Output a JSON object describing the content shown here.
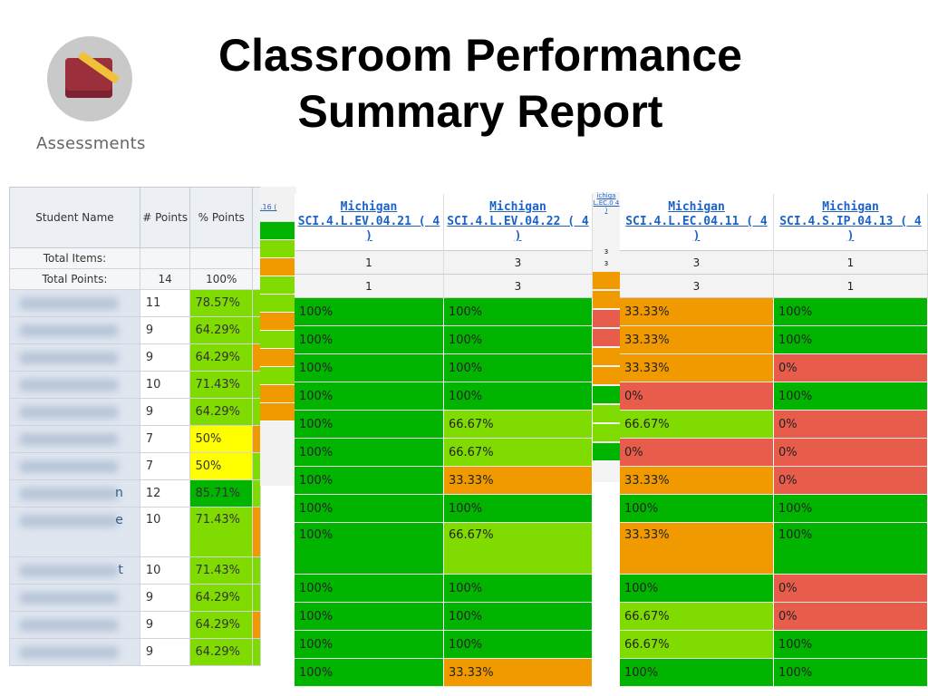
{
  "title": {
    "line1": "Classroom Performance",
    "line2": "Summary Report"
  },
  "app_icon": {
    "label": "Assessments",
    "icon": "assessment-book-pencil-icon"
  },
  "left_table": {
    "headers": {
      "name": "Student Name",
      "points": "# Points",
      "percent": "% Points"
    },
    "total_items_label": "Total Items:",
    "total_points_label": "Total Points:",
    "total_points_value": "14",
    "total_points_percent": "100%",
    "rows": [
      {
        "tail": "",
        "points": "11",
        "percent": "78.57%",
        "color": "l"
      },
      {
        "tail": "",
        "points": "9",
        "percent": "64.29%",
        "color": "l"
      },
      {
        "tail": "",
        "points": "9",
        "percent": "64.29%",
        "color": "l"
      },
      {
        "tail": "",
        "points": "10",
        "percent": "71.43%",
        "color": "l"
      },
      {
        "tail": "",
        "points": "9",
        "percent": "64.29%",
        "color": "l"
      },
      {
        "tail": "",
        "points": "7",
        "percent": "50%",
        "color": "y"
      },
      {
        "tail": "",
        "points": "7",
        "percent": "50%",
        "color": "y"
      },
      {
        "tail": "n",
        "points": "12",
        "percent": "85.71%",
        "color": "g"
      },
      {
        "tail": "e",
        "points": "10",
        "percent": "71.43%",
        "color": "l"
      },
      {
        "tail": "t",
        "points": "10",
        "percent": "71.43%",
        "color": "l"
      },
      {
        "tail": "",
        "points": "9",
        "percent": "64.29%",
        "color": "l"
      },
      {
        "tail": "",
        "points": "9",
        "percent": "64.29%",
        "color": "l"
      },
      {
        "tail": "",
        "points": "9",
        "percent": "64.29%",
        "color": "l"
      }
    ]
  },
  "strip": {
    "header": ".16 ("
  },
  "middle_panel": {
    "columns": [
      {
        "header": "Michigan SCI.4.L.EV.04.21 ( 4 )",
        "total_items": "1",
        "total_points": "1"
      },
      {
        "header": "Michigan SCI.4.L.EV.04.22 ( 4 )",
        "total_items": "3",
        "total_points": "3"
      }
    ],
    "rows": [
      [
        {
          "v": "100%",
          "c": "g"
        },
        {
          "v": "100%",
          "c": "g"
        }
      ],
      [
        {
          "v": "100%",
          "c": "g"
        },
        {
          "v": "100%",
          "c": "g"
        }
      ],
      [
        {
          "v": "100%",
          "c": "g"
        },
        {
          "v": "100%",
          "c": "g"
        }
      ],
      [
        {
          "v": "100%",
          "c": "g"
        },
        {
          "v": "100%",
          "c": "g"
        }
      ],
      [
        {
          "v": "100%",
          "c": "g"
        },
        {
          "v": "66.67%",
          "c": "l"
        }
      ],
      [
        {
          "v": "100%",
          "c": "g"
        },
        {
          "v": "66.67%",
          "c": "l"
        }
      ],
      [
        {
          "v": "100%",
          "c": "g"
        },
        {
          "v": "33.33%",
          "c": "o"
        }
      ],
      [
        {
          "v": "100%",
          "c": "g"
        },
        {
          "v": "100%",
          "c": "g"
        }
      ],
      [
        {
          "v": "100%",
          "c": "g"
        },
        {
          "v": "66.67%",
          "c": "l"
        }
      ],
      [
        {
          "v": "100%",
          "c": "g"
        },
        {
          "v": "100%",
          "c": "g"
        }
      ],
      [
        {
          "v": "100%",
          "c": "g"
        },
        {
          "v": "100%",
          "c": "g"
        }
      ],
      [
        {
          "v": "100%",
          "c": "g"
        },
        {
          "v": "100%",
          "c": "g"
        }
      ],
      [
        {
          "v": "100%",
          "c": "g"
        },
        {
          "v": "33.33%",
          "c": "o"
        }
      ]
    ]
  },
  "tiny_column": {
    "header": "ichiga L.EC.0 4 )",
    "total_items": "3",
    "total_points": "3"
  },
  "right_panel": {
    "columns": [
      {
        "header": "Michigan SCI.4.L.EC.04.11 ( 4 )",
        "total_items": "3",
        "total_points": "3"
      },
      {
        "header": "Michigan SCI.4.S.IP.04.13 ( 4 )",
        "total_items": "1",
        "total_points": "1"
      }
    ],
    "rows": [
      [
        {
          "v": "33.33%",
          "c": "o"
        },
        {
          "v": "100%",
          "c": "g"
        }
      ],
      [
        {
          "v": "33.33%",
          "c": "o"
        },
        {
          "v": "100%",
          "c": "g"
        }
      ],
      [
        {
          "v": "33.33%",
          "c": "o"
        },
        {
          "v": "0%",
          "c": "r"
        }
      ],
      [
        {
          "v": "0%",
          "c": "r"
        },
        {
          "v": "100%",
          "c": "g"
        }
      ],
      [
        {
          "v": "66.67%",
          "c": "l"
        },
        {
          "v": "0%",
          "c": "r"
        }
      ],
      [
        {
          "v": "0%",
          "c": "r"
        },
        {
          "v": "0%",
          "c": "r"
        }
      ],
      [
        {
          "v": "33.33%",
          "c": "o"
        },
        {
          "v": "0%",
          "c": "r"
        }
      ],
      [
        {
          "v": "100%",
          "c": "g"
        },
        {
          "v": "100%",
          "c": "g"
        }
      ],
      [
        {
          "v": "33.33%",
          "c": "o"
        },
        {
          "v": "100%",
          "c": "g"
        }
      ],
      [
        {
          "v": "100%",
          "c": "g"
        },
        {
          "v": "0%",
          "c": "r"
        }
      ],
      [
        {
          "v": "66.67%",
          "c": "l"
        },
        {
          "v": "0%",
          "c": "r"
        }
      ],
      [
        {
          "v": "66.67%",
          "c": "l"
        },
        {
          "v": "100%",
          "c": "g"
        }
      ],
      [
        {
          "v": "100%",
          "c": "g"
        },
        {
          "v": "100%",
          "c": "g"
        }
      ]
    ]
  },
  "colors": {
    "green": "#00b400",
    "light_green": "#7fdb00",
    "orange": "#f09a00",
    "red": "#e85c4b",
    "yellow": "#ffff00",
    "link": "#1c62c8"
  }
}
